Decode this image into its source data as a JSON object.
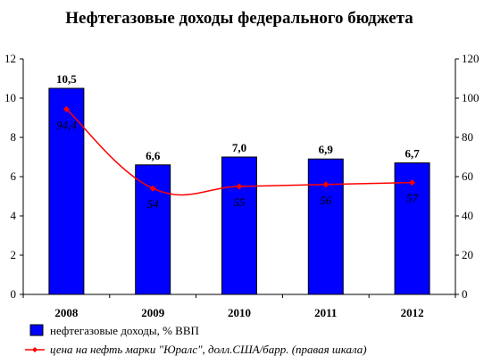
{
  "chart_data": {
    "type": "bar",
    "title": "Нефтегазовые доходы федерального бюджета",
    "categories": [
      "2008",
      "2009",
      "2010",
      "2011",
      "2012"
    ],
    "series": [
      {
        "name": "нефтегазовые доходы, % ВВП",
        "type": "bar",
        "axis": "left",
        "values": [
          10.5,
          6.6,
          7.0,
          6.9,
          6.7
        ],
        "labels": [
          "10,5",
          "6,6",
          "7,0",
          "6,9",
          "6,7"
        ],
        "color": "#0000ff"
      },
      {
        "name": "цена на нефть марки \"Юралс\", долл.США/барр. (правая шкала)",
        "type": "line",
        "axis": "right",
        "values": [
          94.4,
          54,
          55,
          56,
          57
        ],
        "labels": [
          "94,4",
          "54",
          "55",
          "56",
          "57"
        ],
        "color": "#ff0000"
      }
    ],
    "y_left": {
      "ylim": [
        0,
        12
      ],
      "ticks": [
        "0",
        "2",
        "4",
        "6",
        "8",
        "10",
        "12"
      ]
    },
    "y_right": {
      "ylim": [
        0,
        120
      ],
      "ticks": [
        "0",
        "20",
        "40",
        "60",
        "80",
        "100",
        "120"
      ]
    },
    "grid": false,
    "legend_position": "bottom"
  }
}
